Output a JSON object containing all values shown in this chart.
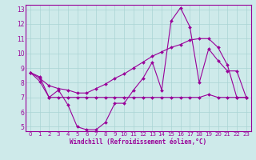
{
  "title": "",
  "xlabel": "Windchill (Refroidissement éolien,°C)",
  "ylabel": "",
  "background_color": "#ceeaea",
  "line_color": "#990099",
  "grid_color": "#aad4d4",
  "xlim": [
    -0.5,
    23.5
  ],
  "ylim": [
    4.7,
    13.3
  ],
  "xticks": [
    0,
    1,
    2,
    3,
    4,
    5,
    6,
    7,
    8,
    9,
    10,
    11,
    12,
    13,
    14,
    15,
    16,
    17,
    18,
    19,
    20,
    21,
    22,
    23
  ],
  "yticks": [
    5,
    6,
    7,
    8,
    9,
    10,
    11,
    12,
    13
  ],
  "line1_x": [
    0,
    1,
    2,
    3,
    4,
    5,
    6,
    7,
    8,
    9,
    10,
    11,
    12,
    13,
    14,
    15,
    16,
    17,
    18,
    19,
    20,
    21,
    22,
    23
  ],
  "line1_y": [
    8.7,
    8.4,
    7.0,
    7.5,
    6.5,
    5.0,
    4.8,
    4.8,
    5.3,
    6.6,
    6.6,
    7.5,
    8.3,
    9.4,
    7.5,
    12.2,
    13.1,
    11.8,
    8.0,
    10.3,
    9.5,
    8.8,
    8.8,
    7.0
  ],
  "line2_x": [
    0,
    1,
    2,
    3,
    4,
    5,
    6,
    7,
    8,
    9,
    10,
    11,
    12,
    13,
    14,
    15,
    16,
    17,
    18,
    19,
    20,
    21,
    22,
    23
  ],
  "line2_y": [
    8.7,
    8.3,
    7.8,
    7.6,
    7.5,
    7.3,
    7.3,
    7.6,
    7.9,
    8.3,
    8.6,
    9.0,
    9.4,
    9.8,
    10.1,
    10.4,
    10.6,
    10.9,
    11.0,
    11.0,
    10.4,
    9.2,
    7.0,
    7.0
  ],
  "line3_x": [
    0,
    1,
    2,
    3,
    4,
    5,
    6,
    7,
    8,
    9,
    10,
    11,
    12,
    13,
    14,
    15,
    16,
    17,
    18,
    19,
    20,
    21,
    22,
    23
  ],
  "line3_y": [
    8.7,
    8.1,
    7.0,
    7.0,
    7.0,
    7.0,
    7.0,
    7.0,
    7.0,
    7.0,
    7.0,
    7.0,
    7.0,
    7.0,
    7.0,
    7.0,
    7.0,
    7.0,
    7.0,
    7.2,
    7.0,
    7.0,
    7.0,
    7.0
  ]
}
